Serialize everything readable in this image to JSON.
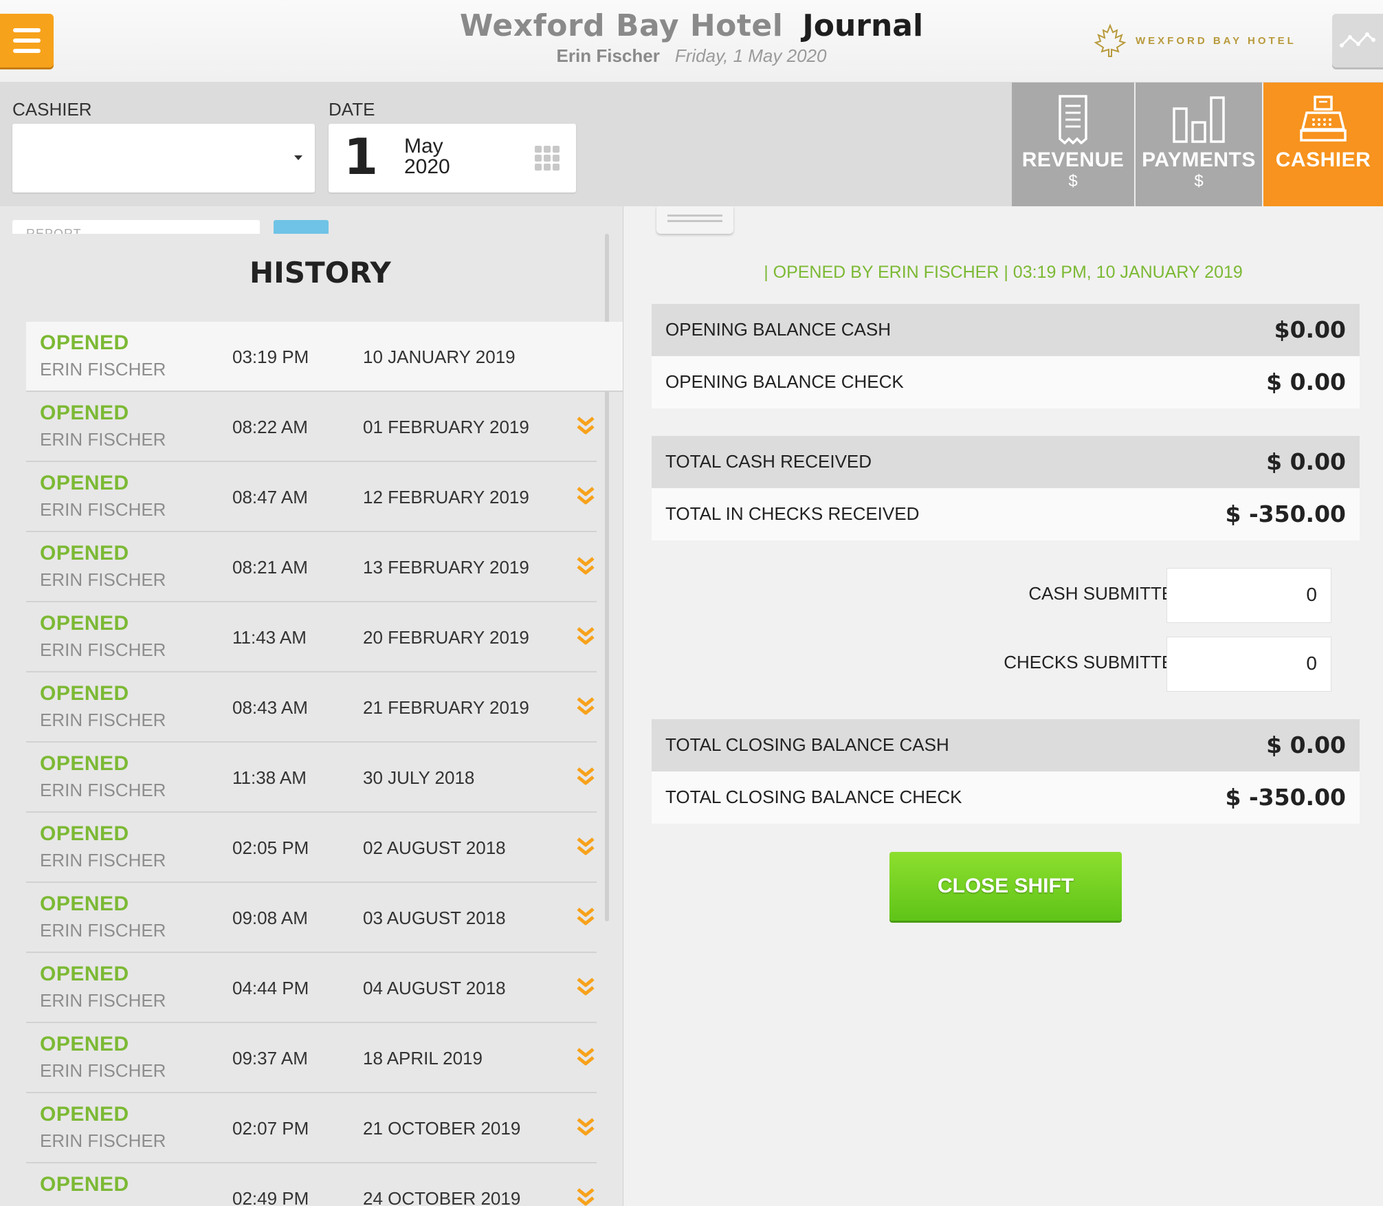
{
  "header": {
    "hotel_name": "Wexford Bay Hotel",
    "page_title": "Journal",
    "user_name": "Erin Fischer",
    "current_date": "Friday, 1 May 2020",
    "brand_text": "WEXFORD BAY HOTEL",
    "accent_color": "#f7a21b"
  },
  "toolbar": {
    "cashier_label": "CASHIER",
    "cashier_value": "",
    "date_label": "DATE",
    "date_day": "1",
    "date_month": "May",
    "date_year": "2020",
    "report_placeholder": "REPORT"
  },
  "tabs": [
    {
      "label": "REVENUE",
      "sub": "$",
      "icon": "receipt-icon",
      "active": false
    },
    {
      "label": "PAYMENTS",
      "sub": "$",
      "icon": "bar-chart-icon",
      "active": false
    },
    {
      "label": "CASHIER",
      "sub": "",
      "icon": "cash-register-icon",
      "active": true
    }
  ],
  "history": {
    "title": "HISTORY",
    "rows": [
      {
        "status": "OPENED",
        "user": "ERIN FISCHER",
        "time": "03:19 PM",
        "date": "10 JANUARY 2019"
      },
      {
        "status": "OPENED",
        "user": "ERIN FISCHER",
        "time": "08:22 AM",
        "date": "01 FEBRUARY 2019"
      },
      {
        "status": "OPENED",
        "user": "ERIN FISCHER",
        "time": "08:47 AM",
        "date": "12 FEBRUARY 2019"
      },
      {
        "status": "OPENED",
        "user": "ERIN FISCHER",
        "time": "08:21 AM",
        "date": "13 FEBRUARY 2019"
      },
      {
        "status": "OPENED",
        "user": "ERIN FISCHER",
        "time": "11:43 AM",
        "date": "20 FEBRUARY 2019"
      },
      {
        "status": "OPENED",
        "user": "ERIN FISCHER",
        "time": "08:43 AM",
        "date": "21 FEBRUARY 2019"
      },
      {
        "status": "OPENED",
        "user": "ERIN FISCHER",
        "time": "11:38 AM",
        "date": "30 JULY 2018"
      },
      {
        "status": "OPENED",
        "user": "ERIN FISCHER",
        "time": "02:05 PM",
        "date": "02 AUGUST 2018"
      },
      {
        "status": "OPENED",
        "user": "ERIN FISCHER",
        "time": "09:08 AM",
        "date": "03 AUGUST 2018"
      },
      {
        "status": "OPENED",
        "user": "ERIN FISCHER",
        "time": "04:44 PM",
        "date": "04 AUGUST 2018"
      },
      {
        "status": "OPENED",
        "user": "ERIN FISCHER",
        "time": "09:37 AM",
        "date": "18 APRIL 2019"
      },
      {
        "status": "OPENED",
        "user": "ERIN FISCHER",
        "time": "02:07 PM",
        "date": "21 OCTOBER 2019"
      },
      {
        "status": "OPENED",
        "user": "",
        "time": "02:49 PM",
        "date": "24 OCTOBER 2019"
      }
    ]
  },
  "shift": {
    "opened_by": "| OPENED BY ERIN FISCHER | 03:19 PM, 10 JANUARY 2019",
    "opening_cash_label": "OPENING BALANCE CASH",
    "opening_cash_value": "$0.00",
    "opening_check_label": "OPENING BALANCE CHECK",
    "opening_check_value": "$ 0.00",
    "total_cash_label": "TOTAL CASH RECEIVED",
    "total_cash_value": "$ 0.00",
    "total_checks_label": "TOTAL IN CHECKS RECEIVED",
    "total_checks_value": "$ -350.00",
    "cash_submitted_label": "CASH SUBMITTED",
    "cash_submitted_value": "0",
    "checks_submitted_label": "CHECKS SUBMITTED",
    "checks_submitted_value": "0",
    "closing_cash_label": "TOTAL CLOSING BALANCE CASH",
    "closing_cash_value": "$ 0.00",
    "closing_check_label": "TOTAL CLOSING BALANCE CHECK",
    "closing_check_value": "$ -350.00",
    "close_button": "CLOSE SHIFT"
  }
}
